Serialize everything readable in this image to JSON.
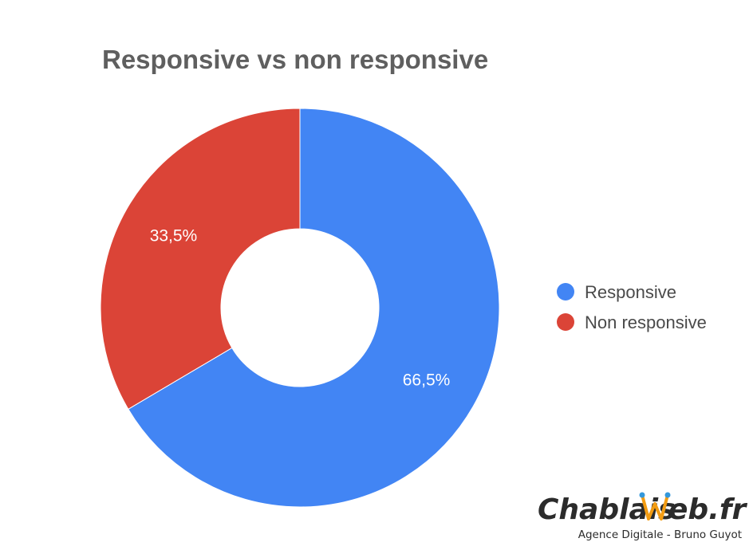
{
  "chart_data": {
    "type": "pie",
    "variant": "donut",
    "title": "Responsive vs non responsive",
    "categories": [
      "Responsive",
      "Non responsive"
    ],
    "values": [
      66.5,
      33.5
    ],
    "labels": [
      "66,5%",
      "33,5%"
    ],
    "colors": [
      "#4285f4",
      "#db4437"
    ],
    "legend": "right"
  },
  "watermark": {
    "brand_prefix": "Chablais ",
    "brand_suffix": "eb.fr",
    "tagline": "Agence Digitale - Bruno Guyot",
    "accent_colors": [
      "#f39c12",
      "#3498db"
    ]
  }
}
